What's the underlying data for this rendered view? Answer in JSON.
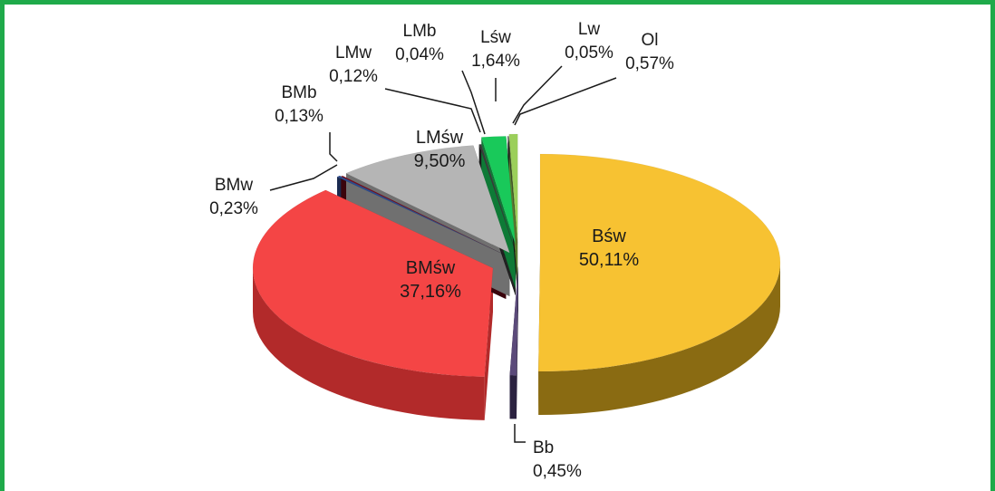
{
  "chart_data": {
    "type": "pie",
    "title": "",
    "slices": [
      {
        "label": "Bśw",
        "value": 50.11,
        "value_text": "50,11%",
        "color": "#f7c232",
        "side_color": "#8a6b12"
      },
      {
        "label": "Bb",
        "value": 0.45,
        "value_text": "0,45%",
        "color": "#5b4a7a",
        "side_color": "#2b2240"
      },
      {
        "label": "BMśw",
        "value": 37.16,
        "value_text": "37,16%",
        "color": "#f44545",
        "side_color": "#b22a2a"
      },
      {
        "label": "BMw",
        "value": 0.23,
        "value_text": "0,23%",
        "color": "#2d4b8c",
        "side_color": "#1a2a50"
      },
      {
        "label": "BMb",
        "value": 0.13,
        "value_text": "0,13%",
        "color": "#7a0a1a",
        "side_color": "#3a040c"
      },
      {
        "label": "LMśw",
        "value": 9.5,
        "value_text": "9,50%",
        "color": "#b5b5b5",
        "side_color": "#707070"
      },
      {
        "label": "LMw",
        "value": 0.12,
        "value_text": "0,12%",
        "color": "#3a3a3a",
        "side_color": "#1a1a1a"
      },
      {
        "label": "LMb",
        "value": 0.04,
        "value_text": "0,04%",
        "color": "#555555",
        "side_color": "#222222"
      },
      {
        "label": "Lśw",
        "value": 1.64,
        "value_text": "1,64%",
        "color": "#19c95a",
        "side_color": "#0e7a36"
      },
      {
        "label": "Lw",
        "value": 0.05,
        "value_text": "0,05%",
        "color": "#2a2a2a",
        "side_color": "#111111"
      },
      {
        "label": "Ol",
        "value": 0.57,
        "value_text": "0,57%",
        "color": "#9bcf5a",
        "side_color": "#5a7d30"
      }
    ]
  },
  "colors": {
    "frame": "#1faa4a",
    "background": "#ffffff"
  }
}
